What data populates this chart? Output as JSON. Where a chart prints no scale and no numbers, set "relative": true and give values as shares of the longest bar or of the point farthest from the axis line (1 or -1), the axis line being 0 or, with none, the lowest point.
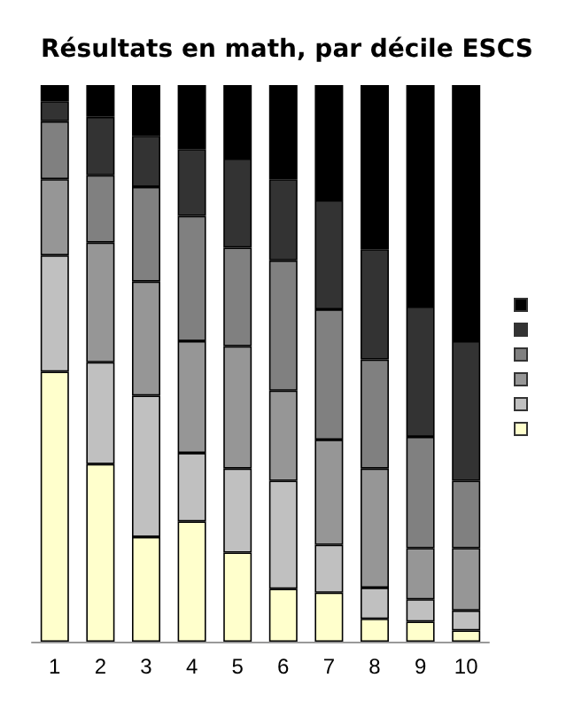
{
  "chart_data": {
    "type": "bar",
    "title": "Résultats en math, par décile ESCS",
    "relative": true,
    "stacked": true,
    "categories": [
      "1",
      "2",
      "3",
      "4",
      "5",
      "6",
      "7",
      "8",
      "9",
      "10"
    ],
    "series": [
      {
        "color": "#ffffcc",
        "values": [
          0.485,
          0.319,
          0.188,
          0.216,
          0.16,
          0.095,
          0.088,
          0.041,
          0.036,
          0.02
        ]
      },
      {
        "color": "#c0c0c0",
        "values": [
          0.209,
          0.183,
          0.254,
          0.123,
          0.151,
          0.194,
          0.086,
          0.056,
          0.04,
          0.036
        ]
      },
      {
        "color": "#969696",
        "values": [
          0.137,
          0.215,
          0.205,
          0.201,
          0.22,
          0.162,
          0.189,
          0.214,
          0.092,
          0.112
        ]
      },
      {
        "color": "#808080",
        "values": [
          0.104,
          0.121,
          0.17,
          0.225,
          0.177,
          0.234,
          0.234,
          0.196,
          0.2,
          0.121
        ]
      },
      {
        "color": "#333333",
        "values": [
          0.036,
          0.105,
          0.092,
          0.12,
          0.16,
          0.146,
          0.196,
          0.198,
          0.234,
          0.251
        ]
      },
      {
        "color": "#000000",
        "values": [
          0.029,
          0.057,
          0.091,
          0.115,
          0.132,
          0.169,
          0.207,
          0.295,
          0.398,
          0.46
        ]
      }
    ]
  }
}
